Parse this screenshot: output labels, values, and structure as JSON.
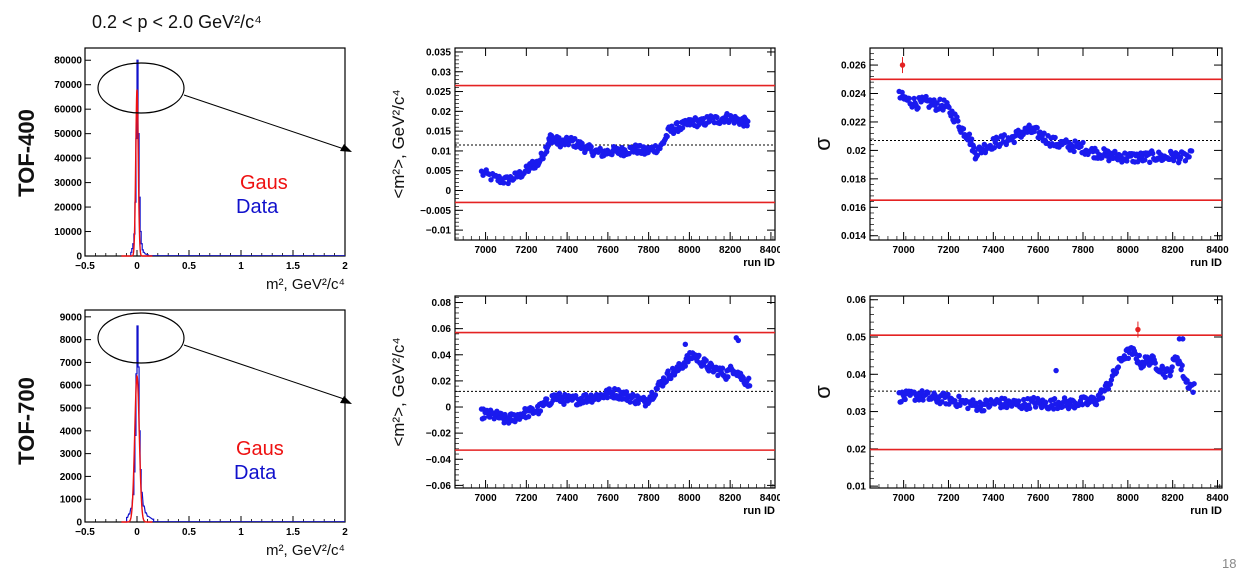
{
  "colors": {
    "gaus": "#ee1111",
    "data": "#1111cc",
    "band": "#e42222",
    "points": "#1a1aee",
    "axis": "#000000"
  },
  "slide": {
    "momentum_range": "0.2 < p < 2.0 GeV²/c⁴",
    "page_number": "18",
    "rows": [
      {
        "detector": "TOF-400"
      },
      {
        "detector": "TOF-700"
      }
    ],
    "legend": {
      "gaus": "Gaus",
      "data": "Data"
    }
  },
  "chart_data": [
    {
      "id": "hist-tof400",
      "type": "histogram",
      "xlabel": "m², GeV²/c⁴",
      "xlim": [
        -0.5,
        2.0
      ],
      "ylim": [
        0,
        85000
      ],
      "xticks": [
        "−0.5",
        "0",
        "0.5",
        "1",
        "1.5",
        "2"
      ],
      "yticks": [
        "0",
        "10000",
        "20000",
        "30000",
        "40000",
        "50000",
        "60000",
        "70000",
        "80000"
      ],
      "yticks_values": [
        0,
        10000,
        20000,
        30000,
        40000,
        50000,
        60000,
        70000,
        80000
      ],
      "series": [
        {
          "name": "Gaus",
          "mean": 0.0,
          "sigma": 0.012,
          "peak": 68000
        },
        {
          "name": "Data",
          "bins_x": [
            -0.06,
            -0.05,
            -0.04,
            -0.03,
            -0.02,
            -0.01,
            0.0,
            0.01,
            0.02,
            0.03,
            0.04,
            0.05,
            0.06,
            0.08,
            0.1
          ],
          "bins_y": [
            1500,
            3000,
            5000,
            9000,
            22000,
            48000,
            80000,
            50000,
            24000,
            10000,
            5000,
            2500,
            1500,
            800,
            400
          ]
        }
      ]
    },
    {
      "id": "hist-tof700",
      "type": "histogram",
      "xlabel": "m², GeV²/c⁴",
      "xlim": [
        -0.5,
        2.0
      ],
      "ylim": [
        0,
        9300
      ],
      "xticks": [
        "−0.5",
        "0",
        "0.5",
        "1",
        "1.5",
        "2"
      ],
      "yticks": [
        "0",
        "1000",
        "2000",
        "3000",
        "4000",
        "5000",
        "6000",
        "7000",
        "8000",
        "9000"
      ],
      "yticks_values": [
        0,
        1000,
        2000,
        3000,
        4000,
        5000,
        6000,
        7000,
        8000,
        9000
      ],
      "series": [
        {
          "name": "Gaus",
          "mean": 0.0,
          "sigma": 0.022,
          "peak": 6400
        },
        {
          "name": "Data",
          "bins_x": [
            -0.1,
            -0.08,
            -0.06,
            -0.04,
            -0.03,
            -0.02,
            -0.01,
            0.0,
            0.01,
            0.02,
            0.03,
            0.04,
            0.06,
            0.08,
            0.1,
            0.15
          ],
          "bins_y": [
            200,
            350,
            600,
            1200,
            2200,
            3800,
            6500,
            8600,
            6800,
            4000,
            2300,
            1300,
            700,
            400,
            250,
            120
          ]
        }
      ]
    },
    {
      "id": "mean-tof400",
      "type": "scatter",
      "ylabel": "<m²>, GeV²/c⁴",
      "xlabel": "run ID",
      "xlim": [
        6850,
        8420
      ],
      "ylim": [
        -0.0125,
        0.036
      ],
      "xticks": [
        "7000",
        "7200",
        "7400",
        "7600",
        "7800",
        "8000",
        "8200",
        "8400"
      ],
      "xticks_values": [
        7000,
        7200,
        7400,
        7600,
        7800,
        8000,
        8200,
        8400
      ],
      "yticks": [
        "−0.01",
        "−0.005",
        "0",
        "0.005",
        "0.01",
        "0.015",
        "0.02",
        "0.025",
        "0.03",
        "0.035"
      ],
      "yticks_values": [
        -0.01,
        -0.005,
        0,
        0.005,
        0.01,
        0.015,
        0.02,
        0.025,
        0.03,
        0.035
      ],
      "red_lines": [
        0.0265,
        -0.003
      ],
      "dotted_line": 0.0115,
      "trend_x": [
        6980,
        7050,
        7100,
        7150,
        7200,
        7230,
        7260,
        7300,
        7320,
        7350,
        7380,
        7420,
        7460,
        7500,
        7540,
        7580,
        7620,
        7660,
        7700,
        7740,
        7780,
        7820,
        7860,
        7900,
        7940,
        7980,
        8020,
        8060,
        8100,
        8140,
        8180,
        8220,
        8260,
        8290
      ],
      "trend_y": [
        0.0045,
        0.003,
        0.0025,
        0.0035,
        0.005,
        0.0065,
        0.007,
        0.011,
        0.0135,
        0.0125,
        0.012,
        0.0125,
        0.0115,
        0.0105,
        0.0098,
        0.0095,
        0.01,
        0.0098,
        0.0102,
        0.0105,
        0.0098,
        0.0105,
        0.011,
        0.015,
        0.016,
        0.0165,
        0.0175,
        0.017,
        0.018,
        0.0178,
        0.0185,
        0.018,
        0.0175,
        0.017
      ],
      "spread": 0.0012
    },
    {
      "id": "sigma-tof400",
      "type": "scatter",
      "ylabel": "σ",
      "xlabel": "run ID",
      "xlim": [
        6850,
        8420
      ],
      "ylim": [
        0.0137,
        0.0272
      ],
      "xticks": [
        "7000",
        "7200",
        "7400",
        "7600",
        "7800",
        "8000",
        "8200",
        "8400"
      ],
      "xticks_values": [
        7000,
        7200,
        7400,
        7600,
        7800,
        8000,
        8200,
        8400
      ],
      "yticks": [
        "0.014",
        "0.016",
        "0.018",
        "0.02",
        "0.022",
        "0.024",
        "0.026"
      ],
      "yticks_values": [
        0.014,
        0.016,
        0.018,
        0.02,
        0.022,
        0.024,
        0.026
      ],
      "red_lines": [
        0.025,
        0.0165
      ],
      "dotted_line": 0.0207,
      "outlier": {
        "x": 6995,
        "y": 0.026
      },
      "trend_x": [
        6980,
        7020,
        7060,
        7100,
        7140,
        7180,
        7220,
        7260,
        7290,
        7320,
        7360,
        7400,
        7440,
        7480,
        7520,
        7560,
        7600,
        7640,
        7680,
        7720,
        7760,
        7800,
        7840,
        7880,
        7920,
        7960,
        8000,
        8040,
        8080,
        8120,
        8160,
        8200,
        8240,
        8290
      ],
      "trend_y": [
        0.0238,
        0.0235,
        0.0233,
        0.0234,
        0.0232,
        0.0232,
        0.0225,
        0.0215,
        0.021,
        0.0198,
        0.0202,
        0.0205,
        0.0207,
        0.0208,
        0.0212,
        0.0214,
        0.0212,
        0.0208,
        0.0205,
        0.0204,
        0.0203,
        0.0202,
        0.0199,
        0.0198,
        0.0196,
        0.0196,
        0.0195,
        0.0195,
        0.0195,
        0.0196,
        0.0195,
        0.0196,
        0.0195,
        0.0196
      ],
      "spread": 0.0004
    },
    {
      "id": "mean-tof700",
      "type": "scatter",
      "ylabel": "<m²>, GeV²/c⁴",
      "xlabel": "run ID",
      "xlim": [
        6850,
        8420
      ],
      "ylim": [
        -0.062,
        0.085
      ],
      "xticks": [
        "7000",
        "7200",
        "7400",
        "7600",
        "7800",
        "8000",
        "8200",
        "8400"
      ],
      "xticks_values": [
        7000,
        7200,
        7400,
        7600,
        7800,
        8000,
        8200,
        8400
      ],
      "yticks": [
        "−0.06",
        "−0.04",
        "−0.02",
        "0",
        "0.02",
        "0.04",
        "0.06",
        "0.08"
      ],
      "yticks_values": [
        -0.06,
        -0.04,
        -0.02,
        0,
        0.02,
        0.04,
        0.06,
        0.08
      ],
      "red_lines": [
        0.057,
        -0.033
      ],
      "dotted_line": 0.012,
      "trend_x": [
        6980,
        7020,
        7060,
        7100,
        7140,
        7180,
        7220,
        7260,
        7300,
        7340,
        7380,
        7420,
        7460,
        7500,
        7540,
        7580,
        7620,
        7660,
        7700,
        7740,
        7780,
        7820,
        7860,
        7900,
        7940,
        7980,
        8020,
        8060,
        8100,
        8140,
        8180,
        8220,
        8260,
        8300
      ],
      "trend_y": [
        -0.005,
        -0.006,
        -0.007,
        -0.01,
        -0.008,
        -0.005,
        -0.004,
        -0.002,
        0.003,
        0.008,
        0.006,
        0.005,
        0.006,
        0.007,
        0.008,
        0.009,
        0.011,
        0.01,
        0.008,
        0.006,
        0.004,
        0.01,
        0.018,
        0.025,
        0.028,
        0.035,
        0.04,
        0.035,
        0.03,
        0.028,
        0.025,
        0.03,
        0.022,
        0.018
      ],
      "spread": 0.004,
      "extra_points": [
        [
          8230,
          0.053
        ],
        [
          8240,
          0.051
        ],
        [
          7980,
          0.048
        ]
      ]
    },
    {
      "id": "sigma-tof700",
      "type": "scatter",
      "ylabel": "σ",
      "xlabel": "run ID",
      "xlim": [
        6850,
        8420
      ],
      "ylim": [
        0.0095,
        0.061
      ],
      "xticks": [
        "7000",
        "7200",
        "7400",
        "7600",
        "7800",
        "8000",
        "8200",
        "8400"
      ],
      "xticks_values": [
        7000,
        7200,
        7400,
        7600,
        7800,
        8000,
        8200,
        8400
      ],
      "yticks": [
        "0.01",
        "0.02",
        "0.03",
        "0.04",
        "0.05",
        "0.06"
      ],
      "yticks_values": [
        0.01,
        0.02,
        0.03,
        0.04,
        0.05,
        0.06
      ],
      "red_lines": [
        0.0505,
        0.0198
      ],
      "dotted_line": 0.0355,
      "outlier": {
        "x": 8045,
        "y": 0.052
      },
      "trend_x": [
        6980,
        7020,
        7060,
        7100,
        7140,
        7180,
        7220,
        7260,
        7300,
        7340,
        7380,
        7420,
        7460,
        7500,
        7540,
        7580,
        7620,
        7660,
        7700,
        7740,
        7780,
        7820,
        7860,
        7900,
        7940,
        7980,
        8020,
        8060,
        8100,
        8140,
        8180,
        8220,
        8260,
        8300
      ],
      "trend_y": [
        0.034,
        0.034,
        0.0345,
        0.034,
        0.0335,
        0.0335,
        0.033,
        0.0325,
        0.032,
        0.0315,
        0.032,
        0.0325,
        0.032,
        0.032,
        0.032,
        0.0325,
        0.032,
        0.032,
        0.0325,
        0.032,
        0.0325,
        0.0325,
        0.033,
        0.036,
        0.04,
        0.045,
        0.046,
        0.043,
        0.044,
        0.042,
        0.04,
        0.045,
        0.038,
        0.036
      ],
      "spread": 0.0015,
      "extra_points": [
        [
          8230,
          0.0495
        ],
        [
          8245,
          0.0495
        ],
        [
          7680,
          0.041
        ]
      ]
    }
  ]
}
